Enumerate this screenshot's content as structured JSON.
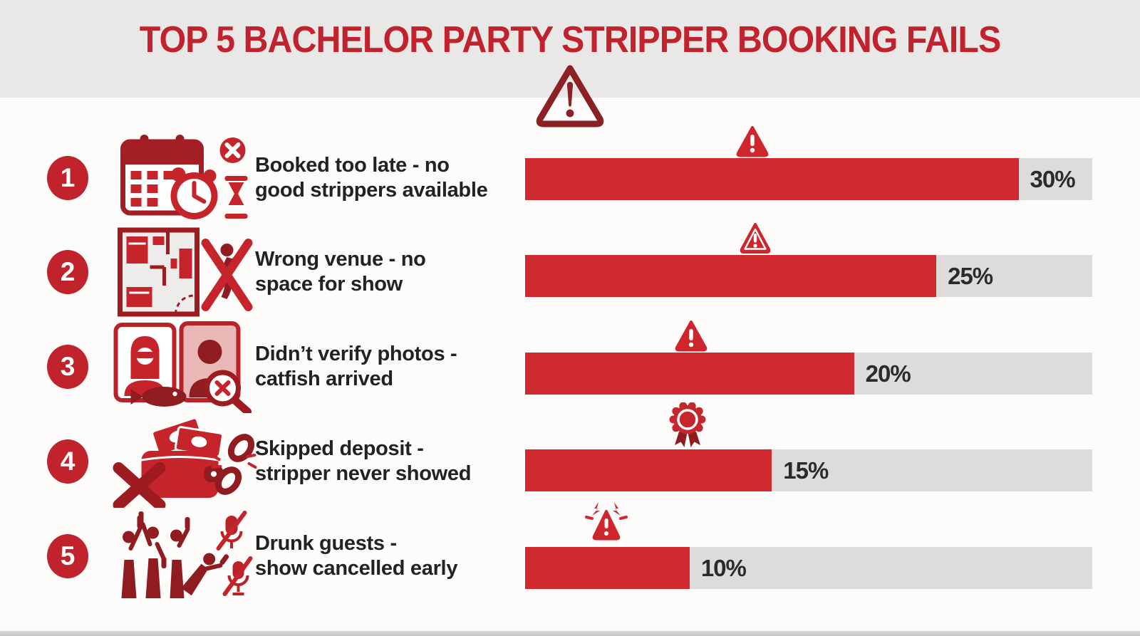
{
  "title": "TOP 5 BACHELOR PARTY STRIPPER BOOKING FAILS",
  "colors": {
    "title_red": "#c0222e",
    "bar_red": "#d02a30",
    "bar_track_gray": "#dddcda",
    "dark_maroon": "#8b2025",
    "icon_red": "#c5242b",
    "number_circle_red": "#c0232b",
    "header_band_gray": "#e9e8e6",
    "background": "#fdfcfa",
    "text_dark": "#232220"
  },
  "rows": [
    {
      "number": "1",
      "icon": "calendar-alarm-clock-cancelled-icon",
      "label_line1": "Booked too late - no",
      "label_line2": "good strippers available",
      "percent_label": "30%"
    },
    {
      "number": "2",
      "icon": "floor-plan-no-dancer-icon",
      "label_line1": "Wrong venue - no",
      "label_line2": "space for show",
      "percent_label": "25%"
    },
    {
      "number": "3",
      "icon": "profile-photos-catfish-icon",
      "label_line1": "Didn’t verify photos -",
      "label_line2": "catfish arrived",
      "percent_label": "20%"
    },
    {
      "number": "4",
      "icon": "wallet-no-deposit-broken-chain-icon",
      "label_line1": "Skipped deposit -",
      "label_line2": "stripper never showed",
      "percent_label": "15%"
    },
    {
      "number": "5",
      "icon": "drunk-crowd-muted-mics-icon",
      "label_line1": "Drunk guests -",
      "label_line2": "show cancelled early",
      "percent_label": "10%"
    }
  ],
  "chart_data": {
    "type": "bar",
    "orientation": "horizontal",
    "title": "TOP 5 BACHELOR PARTY STRIPPER BOOKING FAILS",
    "categories": [
      "Booked too late - no good strippers available",
      "Wrong venue - no space for show",
      "Didn’t verify photos - catfish arrived",
      "Skipped deposit - stripper never showed",
      "Drunk guests - show cancelled early"
    ],
    "values": [
      30,
      25,
      20,
      15,
      10
    ],
    "unit": "%",
    "data_labels": [
      "30%",
      "25%",
      "20%",
      "15%",
      "10%"
    ],
    "bar_fill_percent_of_track": [
      87,
      72.5,
      58,
      43.5,
      29
    ],
    "grid": false,
    "legend": false
  }
}
